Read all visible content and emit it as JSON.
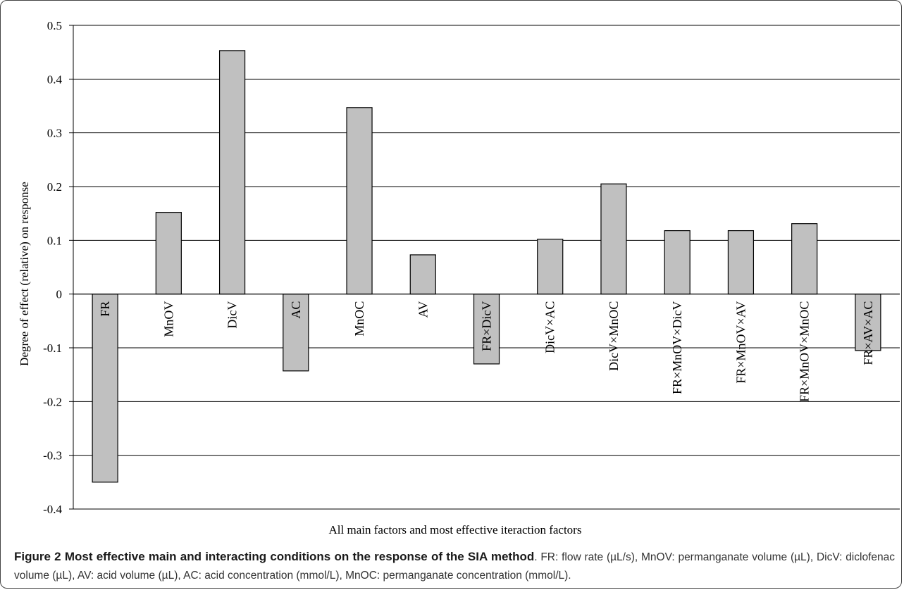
{
  "caption": {
    "label": "Figure 2 Most effective main and interacting conditions on the response of the SIA method",
    "text": ". FR: flow rate (µL/s), MnOV: permanganate volume (µL), DicV: diclofenac volume (µL), AV: acid volume (µL), AC: acid concentration (mmol/L), MnOC: permanganate concentration (mmol/L)."
  },
  "chart_data": {
    "type": "bar",
    "title": "",
    "xlabel": "All main factors and most effective iteraction factors",
    "ylabel": "Degree of effect (relative) on response",
    "ylim": [
      -0.4,
      0.5
    ],
    "yticks": [
      0.5,
      0.4,
      0.3,
      0.2,
      0.1,
      0,
      -0.1,
      -0.2,
      -0.3,
      -0.4
    ],
    "ytick_labels": [
      "0.5",
      "0.4",
      "0.3",
      "0.2",
      "0.1",
      "0",
      "-0.1",
      "-0.2",
      "-0.3",
      "-0.4"
    ],
    "grid": true,
    "categories": [
      "FR",
      "MnOV",
      "DicV",
      "AC",
      "MnOC",
      "AV",
      "FR×DicV",
      "DicV×AC",
      "DicV×MnOC",
      "FR×MnOV×DicV",
      "FR×MnOV×AV",
      "FR×MnOV×MnOC",
      "FR×AV×AC"
    ],
    "values": [
      -0.35,
      0.152,
      0.453,
      -0.143,
      0.347,
      0.073,
      -0.13,
      0.102,
      0.205,
      0.118,
      0.118,
      0.131,
      -0.105
    ],
    "bar_color": "#c0c0c0"
  }
}
